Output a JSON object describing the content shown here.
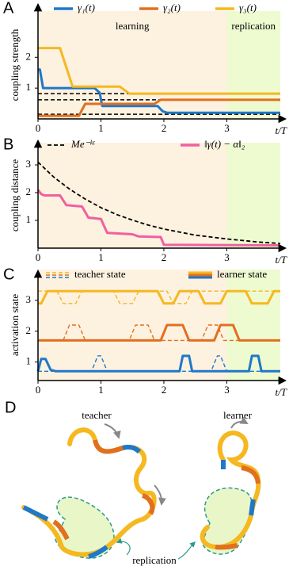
{
  "chart_data": [
    {
      "type": "line",
      "label": "A",
      "ylabel": "coupling strength",
      "xlabel": "t/T",
      "xlim": [
        0,
        3.85
      ],
      "ylim": [
        0,
        3.5
      ],
      "xticks": [
        0,
        1,
        2,
        3
      ],
      "yticks": [
        1,
        2
      ],
      "regions": [
        {
          "label": "learning",
          "x": [
            0,
            3
          ],
          "color": "#fdf1e0"
        },
        {
          "label": "replication",
          "x": [
            3,
            3.85
          ],
          "color": "#eefad0"
        }
      ],
      "hlines": [
        0.82,
        0.62,
        0.15
      ],
      "series": [
        {
          "name": "γ₁(t)",
          "color": "#1f78c8",
          "x": [
            0,
            0.03,
            0.08,
            0.9,
            0.98,
            1.02,
            1.9,
            1.98,
            2.05,
            3.85
          ],
          "values": [
            1.6,
            1.6,
            1.0,
            1.0,
            0.85,
            0.42,
            0.42,
            0.25,
            0.2,
            0.2
          ]
        },
        {
          "name": "γ₂(t)",
          "color": "#e07020",
          "x": [
            0,
            0.65,
            0.75,
            1.85,
            1.95,
            3.85
          ],
          "values": [
            0.1,
            0.1,
            0.49,
            0.49,
            0.62,
            0.62
          ]
        },
        {
          "name": "γ₃(t)",
          "color": "#f5b820",
          "x": [
            0,
            0.35,
            0.55,
            1.3,
            1.45,
            3.85
          ],
          "values": [
            2.3,
            2.3,
            1.05,
            1.05,
            0.82,
            0.82
          ]
        }
      ]
    },
    {
      "type": "line",
      "label": "B",
      "ylabel": "coupling distance",
      "xlabel": "t/T",
      "xlim": [
        0,
        3.85
      ],
      "ylim": [
        0,
        3.8
      ],
      "xticks": [
        0,
        1,
        2,
        3
      ],
      "yticks": [
        1,
        2,
        3
      ],
      "regions": [
        {
          "x": [
            0,
            3
          ],
          "color": "#fdf1e0"
        },
        {
          "x": [
            3,
            3.85
          ],
          "color": "#eefad0"
        }
      ],
      "series": [
        {
          "name": "Me⁻ᵏᵗ",
          "color": "#000000",
          "dashed": true,
          "x": [
            0,
            0.25,
            0.5,
            0.75,
            1,
            1.25,
            1.5,
            1.75,
            2,
            2.5,
            3,
            3.5,
            3.85
          ],
          "values": [
            3.1,
            2.56,
            2.13,
            1.77,
            1.46,
            1.21,
            1.01,
            0.83,
            0.69,
            0.47,
            0.33,
            0.22,
            0.17
          ]
        },
        {
          "name": "‖γ(t) − α‖₂",
          "color": "#f060a0",
          "x": [
            0,
            0.05,
            0.1,
            0.35,
            0.45,
            0.7,
            0.8,
            1.0,
            1.1,
            1.5,
            1.6,
            1.95,
            2.0,
            3.85
          ],
          "values": [
            2.1,
            1.95,
            1.9,
            1.9,
            1.55,
            1.5,
            1.1,
            1.05,
            0.55,
            0.5,
            0.42,
            0.4,
            0.12,
            0.1
          ]
        }
      ]
    },
    {
      "type": "line",
      "label": "C",
      "ylabel": "activation state",
      "xlabel": "t/T",
      "xlim": [
        0,
        3.85
      ],
      "ylim": [
        0.4,
        4.0
      ],
      "xticks": [
        0,
        1,
        2,
        3
      ],
      "yticks": [
        1,
        2,
        3
      ],
      "regions": [
        {
          "x": [
            0,
            3
          ],
          "color": "#fdf1e0"
        },
        {
          "x": [
            3,
            3.85
          ],
          "color": "#eefad0"
        }
      ],
      "legend": [
        {
          "label": "teacher state",
          "dashed": true
        },
        {
          "label": "learner state",
          "dashed": false
        }
      ],
      "series": [
        {
          "color": "#f5b820",
          "dashed": true,
          "x": [
            0,
            0.3,
            0.4,
            0.6,
            0.7,
            1.2,
            1.3,
            1.5,
            1.6,
            2.05,
            2.15,
            2.35,
            2.45,
            3.85
          ],
          "values": [
            3.3,
            3.3,
            2.9,
            2.9,
            3.3,
            3.3,
            2.9,
            2.9,
            3.3,
            3.3,
            2.9,
            2.9,
            3.3,
            3.3
          ]
        },
        {
          "color": "#e07020",
          "dashed": true,
          "x": [
            0,
            0.4,
            0.5,
            0.65,
            0.75,
            1.45,
            1.55,
            1.75,
            1.85,
            2.6,
            2.7,
            2.85,
            2.95,
            3.85
          ],
          "values": [
            1.7,
            1.7,
            2.2,
            2.2,
            1.7,
            1.7,
            2.2,
            2.2,
            1.7,
            1.7,
            2.2,
            2.2,
            1.7,
            1.7
          ]
        },
        {
          "color": "#1f78c8",
          "dashed": true,
          "x": [
            0,
            0.85,
            0.95,
            1.0,
            1.1,
            2.75,
            2.85,
            2.9,
            3.0,
            3.85
          ],
          "values": [
            0.7,
            0.7,
            1.2,
            1.2,
            0.7,
            0.7,
            1.2,
            1.2,
            0.7,
            0.7
          ]
        },
        {
          "color": "#f5b820",
          "x": [
            0,
            0.05,
            0.15,
            1.9,
            2.0,
            2.15,
            2.25,
            2.55,
            2.65,
            2.9,
            3.0,
            3.3,
            3.4,
            3.65,
            3.75,
            3.85
          ],
          "values": [
            2.9,
            2.9,
            3.3,
            3.3,
            2.9,
            2.9,
            3.3,
            3.3,
            2.9,
            2.9,
            3.3,
            3.3,
            2.9,
            2.9,
            3.3,
            3.3
          ]
        },
        {
          "color": "#e07020",
          "x": [
            0,
            1.95,
            2.05,
            2.3,
            2.4,
            2.8,
            2.9,
            3.1,
            3.2,
            3.85
          ],
          "values": [
            1.7,
            1.7,
            2.2,
            2.2,
            1.7,
            1.7,
            2.2,
            2.2,
            1.7,
            1.7
          ]
        },
        {
          "color": "#1f78c8",
          "x": [
            0,
            0.05,
            0.12,
            0.2,
            0.28,
            2.25,
            2.3,
            2.4,
            2.45,
            3.35,
            3.4,
            3.5,
            3.55,
            3.85
          ],
          "values": [
            0.7,
            1.1,
            1.1,
            0.75,
            0.7,
            0.7,
            1.2,
            1.2,
            0.7,
            0.7,
            1.2,
            1.2,
            0.7,
            0.7
          ]
        }
      ]
    }
  ],
  "diagram": {
    "label": "D",
    "teacher": "teacher",
    "learner": "learner",
    "replication": "replication"
  }
}
